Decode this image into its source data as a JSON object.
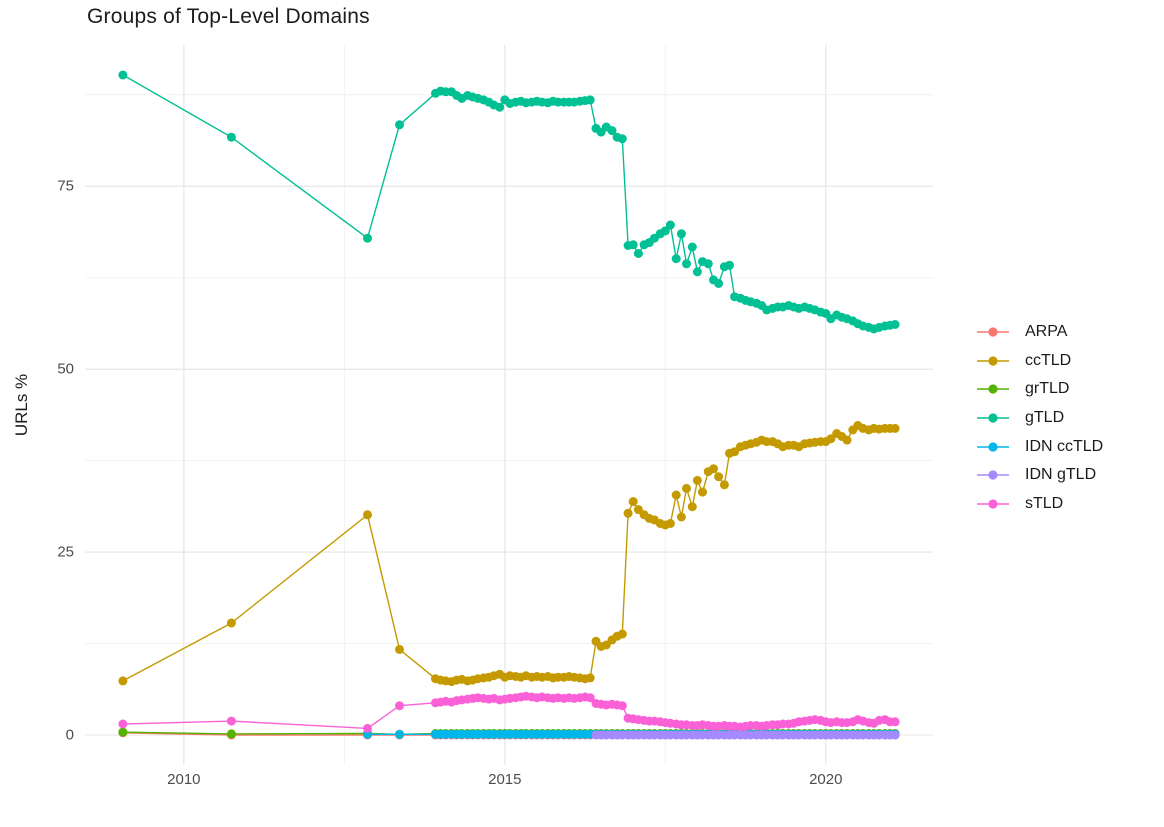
{
  "title": "Groups of Top-Level Domains",
  "style": {
    "background": "#ffffff",
    "grid_major_color": "#e4e4e4",
    "grid_minor_color": "#f1f1f1",
    "tick_label_color": "#4d4d4d",
    "text_color": "#1c1c1c"
  },
  "chart_data": {
    "type": "line",
    "title": "Groups of Top-Level Domains",
    "xlabel": "",
    "ylabel": "URLs %",
    "legend_position": "right",
    "grid": "major+minor",
    "marker": "circle",
    "xlim": [
      2008.46,
      2021.67
    ],
    "ylim": [
      -4.1,
      94.3
    ],
    "x_major_ticks": [
      2010,
      2015,
      2020
    ],
    "x_minor_ticks": [
      2012.5,
      2017.5
    ],
    "y_major_ticks": [
      0,
      25,
      50,
      75
    ],
    "y_minor_ticks": [
      12.5,
      37.5,
      62.5,
      87.5
    ],
    "x": [
      2009.05,
      2010.74,
      2012.86,
      2013.36,
      2013.92,
      2014,
      2014.08,
      2014.17,
      2014.25,
      2014.33,
      2014.42,
      2014.5,
      2014.58,
      2014.67,
      2014.75,
      2014.83,
      2014.92,
      2015,
      2015.08,
      2015.17,
      2015.25,
      2015.33,
      2015.42,
      2015.5,
      2015.58,
      2015.67,
      2015.75,
      2015.83,
      2015.92,
      2016,
      2016.08,
      2016.17,
      2016.25,
      2016.33,
      2016.42,
      2016.5,
      2016.58,
      2016.67,
      2016.75,
      2016.83,
      2016.92,
      2017,
      2017.08,
      2017.17,
      2017.25,
      2017.33,
      2017.42,
      2017.5,
      2017.58,
      2017.67,
      2017.75,
      2017.83,
      2017.92,
      2018,
      2018.08,
      2018.17,
      2018.25,
      2018.33,
      2018.42,
      2018.5,
      2018.58,
      2018.67,
      2018.75,
      2018.83,
      2018.92,
      2019,
      2019.08,
      2019.17,
      2019.25,
      2019.33,
      2019.42,
      2019.5,
      2019.58,
      2019.67,
      2019.75,
      2019.83,
      2019.92,
      2020,
      2020.08,
      2020.17,
      2020.25,
      2020.33,
      2020.42,
      2020.5,
      2020.58,
      2020.67,
      2020.75,
      2020.83,
      2020.92,
      2021,
      2021.08
    ],
    "series": [
      {
        "name": "ARPA",
        "color": "#F8766D",
        "values": [
          0.3,
          0,
          0,
          0,
          0,
          0,
          0,
          0,
          0,
          0,
          0,
          0,
          0,
          0,
          0,
          0,
          0,
          0,
          0,
          0,
          0,
          0,
          0,
          0,
          0,
          0,
          0,
          0,
          0,
          0,
          0,
          0,
          0,
          0,
          0,
          0,
          0,
          0,
          0,
          0,
          0,
          0,
          0,
          0,
          0,
          0,
          0,
          0,
          0,
          0,
          0,
          0,
          0,
          0,
          0,
          0,
          0,
          0,
          0,
          0,
          0,
          0,
          0,
          0,
          0,
          0,
          0,
          0,
          0,
          0,
          0,
          0,
          0,
          0,
          0,
          0,
          0,
          0,
          0,
          0,
          0,
          0,
          0,
          0,
          0,
          0,
          0,
          0,
          0,
          0,
          0
        ]
      },
      {
        "name": "ccTLD",
        "color": "#C49A00",
        "values": [
          7.4,
          15.3,
          30.1,
          11.7,
          7.7,
          7.5,
          7.4,
          7.3,
          7.5,
          7.6,
          7.4,
          7.5,
          7.7,
          7.8,
          7.9,
          8.1,
          8.3,
          7.9,
          8.1,
          8,
          7.9,
          8.1,
          7.9,
          8,
          7.9,
          8,
          7.8,
          7.9,
          7.9,
          8,
          7.9,
          7.8,
          7.7,
          7.8,
          12.8,
          12.1,
          12.3,
          13,
          13.5,
          13.8,
          30.3,
          31.9,
          30.8,
          30.1,
          29.6,
          29.4,
          28.9,
          28.7,
          28.9,
          32.8,
          29.8,
          33.7,
          31.2,
          34.8,
          33.2,
          36,
          36.4,
          35.3,
          34.2,
          38.5,
          38.7,
          39.4,
          39.6,
          39.8,
          40,
          40.3,
          40.1,
          40.1,
          39.8,
          39.4,
          39.6,
          39.6,
          39.4,
          39.8,
          39.9,
          40,
          40.1,
          40.1,
          40.5,
          41.2,
          40.8,
          40.3,
          41.7,
          42.3,
          41.9,
          41.7,
          41.9,
          41.8,
          41.9,
          41.9,
          41.9
        ]
      },
      {
        "name": "grTLD",
        "color": "#53B400",
        "values": [
          0.4,
          0.15,
          0.2,
          0.1,
          0.2,
          0.2,
          0.2,
          0.2,
          0.2,
          0.2,
          0.2,
          0.2,
          0.2,
          0.2,
          0.2,
          0.2,
          0.2,
          0.2,
          0.2,
          0.2,
          0.2,
          0.2,
          0.2,
          0.2,
          0.2,
          0.2,
          0.2,
          0.2,
          0.2,
          0.2,
          0.2,
          0.2,
          0.2,
          0.2,
          0.2,
          0.2,
          0.2,
          0.2,
          0.2,
          0.2,
          0.2,
          0.2,
          0.2,
          0.2,
          0.2,
          0.2,
          0.2,
          0.2,
          0.2,
          0.2,
          0.2,
          0.2,
          0.2,
          0.2,
          0.2,
          0.2,
          0.2,
          0.2,
          0.2,
          0.2,
          0.2,
          0.2,
          0.2,
          0.2,
          0.2,
          0.2,
          0.2,
          0.2,
          0.2,
          0.2,
          0.2,
          0.2,
          0.2,
          0.2,
          0.2,
          0.2,
          0.2,
          0.2,
          0.2,
          0.2,
          0.2,
          0.2,
          0.2,
          0.2,
          0.2,
          0.2,
          0.2,
          0.2,
          0.2,
          0.2,
          0.2
        ]
      },
      {
        "name": "gTLD",
        "color": "#00C094",
        "values": [
          90.2,
          81.7,
          67.9,
          83.4,
          87.7,
          88,
          87.9,
          87.9,
          87.4,
          87,
          87.4,
          87.2,
          87,
          86.8,
          86.5,
          86.1,
          85.8,
          86.8,
          86.3,
          86.5,
          86.6,
          86.4,
          86.5,
          86.6,
          86.5,
          86.4,
          86.6,
          86.5,
          86.5,
          86.5,
          86.5,
          86.6,
          86.7,
          86.8,
          82.9,
          82.4,
          83.1,
          82.6,
          81.7,
          81.5,
          66.9,
          67,
          65.8,
          67,
          67.3,
          67.9,
          68.5,
          68.9,
          69.7,
          65.1,
          68.5,
          64.4,
          66.7,
          63.3,
          64.7,
          64.4,
          62.2,
          61.7,
          64,
          64.2,
          59.9,
          59.7,
          59.4,
          59.2,
          59,
          58.7,
          58.1,
          58.3,
          58.5,
          58.5,
          58.7,
          58.5,
          58.3,
          58.5,
          58.3,
          58.1,
          57.8,
          57.6,
          56.9,
          57.4,
          57.1,
          56.9,
          56.6,
          56.2,
          55.9,
          55.7,
          55.5,
          55.7,
          55.9,
          56,
          56.1
        ]
      },
      {
        "name": "IDN ccTLD",
        "color": "#00B6EB",
        "values": [
          null,
          null,
          0.1,
          0.1,
          0.1,
          0.1,
          0.1,
          0.1,
          0.1,
          0.1,
          0.1,
          0.1,
          0.1,
          0.1,
          0.1,
          0.1,
          0.1,
          0.1,
          0.1,
          0.1,
          0.1,
          0.1,
          0.1,
          0.1,
          0.1,
          0.1,
          0.1,
          0.1,
          0.1,
          0.1,
          0.1,
          0.1,
          0.1,
          0.1,
          0.1,
          0.1,
          0.1,
          0.1,
          0.1,
          0.1,
          0.1,
          0.1,
          0.1,
          0.1,
          0.1,
          0.1,
          0.1,
          0.1,
          0.1,
          0.1,
          0.1,
          0.1,
          0.1,
          0.1,
          0.1,
          0.1,
          0.1,
          0.1,
          0.1,
          0.1,
          0.1,
          0.1,
          0.1,
          0.1,
          0.1,
          0.1,
          0.1,
          0.1,
          0.1,
          0.1,
          0.1,
          0.1,
          0.1,
          0.1,
          0.1,
          0.1,
          0.1,
          0.1,
          0.1,
          0.1,
          0.1,
          0.1,
          0.1,
          0.1,
          0.1,
          0.1,
          0.1,
          0.1,
          0.1,
          0.1,
          0.1
        ]
      },
      {
        "name": "IDN gTLD",
        "color": "#A58AFF",
        "values": [
          null,
          null,
          null,
          null,
          null,
          null,
          null,
          null,
          null,
          null,
          null,
          null,
          null,
          null,
          null,
          null,
          null,
          null,
          null,
          null,
          null,
          null,
          null,
          null,
          null,
          null,
          null,
          null,
          null,
          null,
          null,
          null,
          null,
          null,
          0,
          0,
          0,
          0,
          0,
          0,
          0,
          0,
          0,
          0,
          0,
          0,
          0,
          0,
          0,
          0,
          0,
          0,
          0,
          0,
          0,
          0,
          0,
          0,
          0,
          0,
          0,
          0,
          0,
          0,
          0,
          0,
          0,
          0,
          0,
          0,
          0,
          0,
          0,
          0,
          0,
          0,
          0,
          0,
          0,
          0,
          0,
          0,
          0,
          0,
          0,
          0,
          0,
          0,
          0,
          0,
          0
        ]
      },
      {
        "name": "sTLD",
        "color": "#FB61D7",
        "values": [
          1.5,
          1.9,
          0.9,
          4,
          4.4,
          4.5,
          4.6,
          4.5,
          4.7,
          4.8,
          4.9,
          5,
          5.1,
          5,
          4.9,
          5,
          4.8,
          4.9,
          5,
          5.1,
          5.2,
          5.3,
          5.2,
          5.1,
          5.2,
          5.1,
          5,
          5.1,
          5,
          5.1,
          5,
          5.1,
          5.2,
          5.1,
          4.3,
          4.2,
          4.1,
          4.2,
          4.1,
          4,
          2.3,
          2.2,
          2.1,
          2,
          1.9,
          1.9,
          1.8,
          1.7,
          1.6,
          1.5,
          1.4,
          1.4,
          1.3,
          1.3,
          1.4,
          1.3,
          1.2,
          1.2,
          1.3,
          1.2,
          1.2,
          1.1,
          1.2,
          1.3,
          1.3,
          1.2,
          1.3,
          1.4,
          1.4,
          1.5,
          1.5,
          1.6,
          1.8,
          1.9,
          2,
          2.1,
          2,
          1.8,
          1.7,
          1.8,
          1.7,
          1.7,
          1.8,
          2.1,
          1.9,
          1.7,
          1.6,
          2,
          2.1,
          1.8,
          1.8
        ]
      }
    ]
  }
}
